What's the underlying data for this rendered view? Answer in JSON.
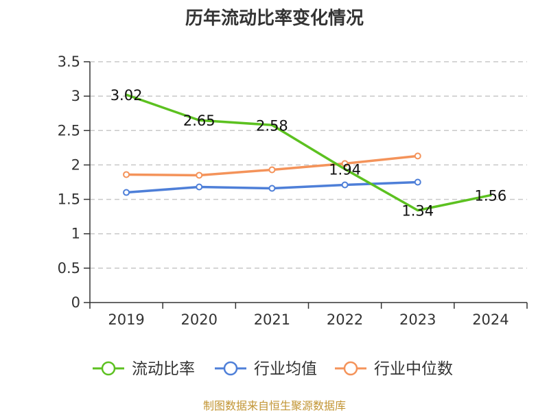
{
  "chart_data": {
    "type": "line",
    "title": "历年流动比率变化情况",
    "categories": [
      "2019",
      "2020",
      "2021",
      "2022",
      "2023",
      "2024"
    ],
    "ylim": [
      0,
      3.5
    ],
    "yticks": [
      "0",
      "0.5",
      "1",
      "1.5",
      "2",
      "2.5",
      "3",
      "3.5"
    ],
    "grid": true,
    "legend_position": "bottom",
    "series": [
      {
        "name": "流动比率",
        "color": "#5cc120",
        "values": [
          3.02,
          2.65,
          2.58,
          1.94,
          1.34,
          1.56
        ],
        "labels": [
          "3.02",
          "2.65",
          "2.58",
          "1.94",
          "1.34",
          "1.56"
        ]
      },
      {
        "name": "行业均值",
        "color": "#4e7fd8",
        "values": [
          1.6,
          1.68,
          1.66,
          1.71,
          1.75,
          null
        ]
      },
      {
        "name": "行业中位数",
        "color": "#f4935a",
        "values": [
          1.86,
          1.85,
          1.93,
          2.02,
          2.13,
          null
        ]
      }
    ],
    "source": "制图数据来自恒生聚源数据库"
  }
}
